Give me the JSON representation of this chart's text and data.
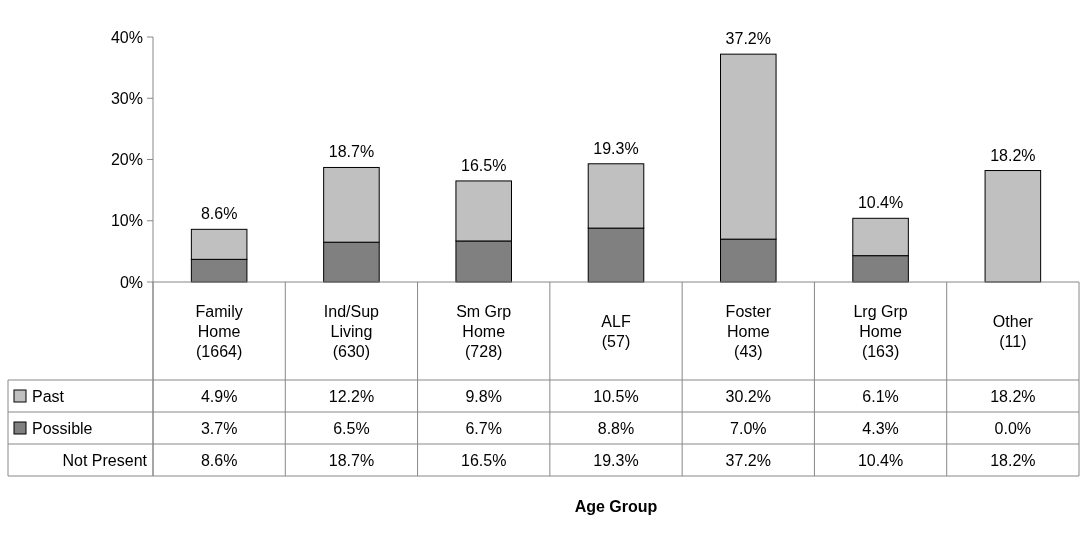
{
  "chart_data": {
    "type": "bar",
    "stacked": true,
    "annotations": [
      "Not Present",
      "Age Group"
    ],
    "totals": [
      "8.6%",
      "18.7%",
      "16.5%",
      "19.3%",
      "37.2%",
      "10.4%",
      "18.2%"
    ],
    "categories": [
      "Family\nHome\n(1664)",
      "Ind/Sup\nLiving\n(630)",
      "Sm Grp\nHome\n(728)",
      "ALF\n(57)",
      "Foster\nHome\n(43)",
      "Lrg Grp\nHome\n(163)",
      "Other\n(11)"
    ],
    "series": [
      {
        "name": "Possible",
        "color": "#808080",
        "values": [
          3.7,
          6.5,
          6.7,
          8.8,
          7.0,
          4.3,
          0.0
        ],
        "value_labels": [
          "3.7%",
          "6.5%",
          "6.7%",
          "8.8%",
          "7.0%",
          "4.3%",
          "0.0%"
        ]
      },
      {
        "name": "Past",
        "color": "#c0c0c0",
        "values": [
          4.9,
          12.2,
          9.8,
          10.5,
          30.2,
          6.1,
          18.2
        ],
        "value_labels": [
          "4.9%",
          "12.2%",
          "9.8%",
          "10.5%",
          "30.2%",
          "6.1%",
          "18.2%"
        ]
      }
    ],
    "ylim": [
      0,
      40
    ],
    "yticks": [
      {
        "value": 0,
        "label": "0%"
      },
      {
        "value": 10,
        "label": "10%"
      },
      {
        "value": 20,
        "label": "20%"
      },
      {
        "value": 30,
        "label": "30%"
      },
      {
        "value": 40,
        "label": "40%"
      }
    ],
    "grid": false,
    "legend": "bottom left"
  }
}
